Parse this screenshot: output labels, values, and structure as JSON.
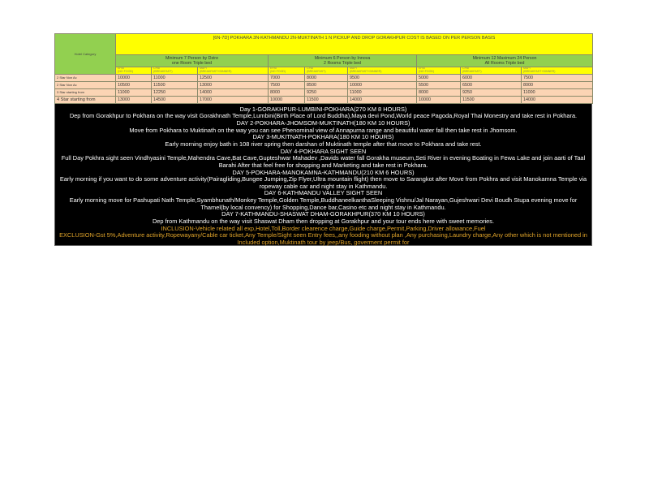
{
  "table": {
    "title": "[6N-7D] POKHARA 3N-KATHMANDU 2N-MUKTINATH 1 N PICKUP AND DROP GORAKHPUR COST IS BASED ON PER PERSON BASIS",
    "category_header": "Hotel Category",
    "groups": [
      {
        "line1": "Minimum 7 Person by Dzire",
        "line2": "one Room Triple bed"
      },
      {
        "line1": "Minimum 6 Person by Innova",
        "line2": "2 Rooms Triple bed"
      },
      {
        "line1": "Minimum 12 Maximum 24 Person",
        "line2": "All Rooms Triple bed"
      }
    ],
    "plans": [
      {
        "code": "EPAI",
        "desc": "(NO FOOD)"
      },
      {
        "code": "CPAI",
        "desc": "(BREAKFAST)"
      },
      {
        "code": "MAPI",
        "desc": "(BREAKFAST+DINNER)"
      }
    ],
    "rows": [
      {
        "label": "2 Star Non Ac",
        "values": [
          "10000",
          "11000",
          "12500",
          "7000",
          "8000",
          "9500",
          "5000",
          "6000",
          "7500"
        ]
      },
      {
        "label": "2 Star Non Ac",
        "values": [
          "10500",
          "11500",
          "13000",
          "7500",
          "8500",
          "10000",
          "5500",
          "6500",
          "8000"
        ]
      },
      {
        "label": "3 Star starting from",
        "values": [
          "11000",
          "12250",
          "14000",
          "8000",
          "9250",
          "11000",
          "8000",
          "9250",
          "11000"
        ]
      },
      {
        "label": "4 Star starting from",
        "values": [
          "13000",
          "14500",
          "17000",
          "10000",
          "11500",
          "14000",
          "10000",
          "11500",
          "14000"
        ]
      }
    ]
  },
  "itinerary": [
    {
      "text": "Day 1-GORAKHPUR-LUMBINI-POKHARA(270 KM 8 HOURS)"
    },
    {
      "text": "Dep from Gorakhpur to Pokhara on the way visit  Gorakhnath Temple,Lumbini(Birth Place of Lord Buddha),Maya devi Pond,World peace Pagoda,Royal Thai Monestry and take rest in Pokhara."
    },
    {
      "text": "DAY 2-POKHARA-JHOMSOM-MUKTINATH(180 KM 10 HOURS)"
    },
    {
      "text": "Move from Pokhara to Muktinath on the way you can see Phenominal view of Annapurna range and beautiful water fall then take rest in Jhomsom."
    },
    {
      "text": "DAY 3-MUKITNATH-POKHARA(180 KM 10 HOURS)"
    },
    {
      "text": "Early morning enjoy bath in 108 river spring then darshan of Muktinath temple after that move to Pokhara and take rest."
    },
    {
      "text": "DAY 4-POKHARA SIGHT SEEN"
    },
    {
      "text": "Full Day Pokhra sight seen Vindhyasini Temple,Mahendra Cave,Bat Cave,Gupteshwar Mahadev ,Davids water fall Gorakha museum,Seti River in evening Boating in Fewa Lake and join aarti of Taal Barahi After that feel free for shopping and Marketing  and take rest in Pokhara."
    },
    {
      "text": "DAY 5-POKHARA-MANOKAMNA-KATHMANDU(210 KM 6 HOURS)"
    },
    {
      "text": "Early morning if you want to do some adventure activity(Pairagliding,Bungee Jumping,Zip Flyer,Ultra mountain flight) then move to Sarangkot after Move from Pokhra and visit Manokamna Temple via ropeway cable car and night stay in Kathmandu."
    },
    {
      "text": "DAY 6-KATHMANDU VALLEY SIGHT SEEN"
    },
    {
      "text": "Early morning move for Pashupati Nath Temple,Syambhunath/Monkey Temple,Golden Temple,BuddhaneelkanthaSleeping Vishnu/Jal Narayan,Gujeshwari Devi Boudh Stupa evening move for Thamel(by local convency) for Shopping,Dance bar,Casino etc and night stay in Kathmandu."
    },
    {
      "text": "DAY 7-KATHMANDU-SHASWAT DHAM-GORAKHPUR(370 KM 10 HOURS)"
    },
    {
      "text": "Dep from Kathmandu on the way visit Shaswat Dham then  dropping at Gorakhpur and your tour ends here with sweet memories."
    }
  ],
  "inclusion": "INCLUSION-Vehicle related all exp,Hotel,Toll,Border clearence charge,Guide charge,Permit,Parking,Driver allowance,Fuel",
  "exclusion": "EXCLUSION-Gst 5%,Adventure activity,Ropewayany/Cable car ticket,Any Temple/Sight seen Entry fees,,any fooding without plan ,Any purchasing,Laundry charge,Any other which is not mentioned in Included option,Muktinath tour by jeep/Bus, goverment permit for",
  "colors": {
    "title_bg": "#ffff00",
    "header_bg": "#92d050",
    "row_bg": "#fbd4b4",
    "itinerary_bg": "#000000",
    "note_color": "#e2a52a"
  }
}
